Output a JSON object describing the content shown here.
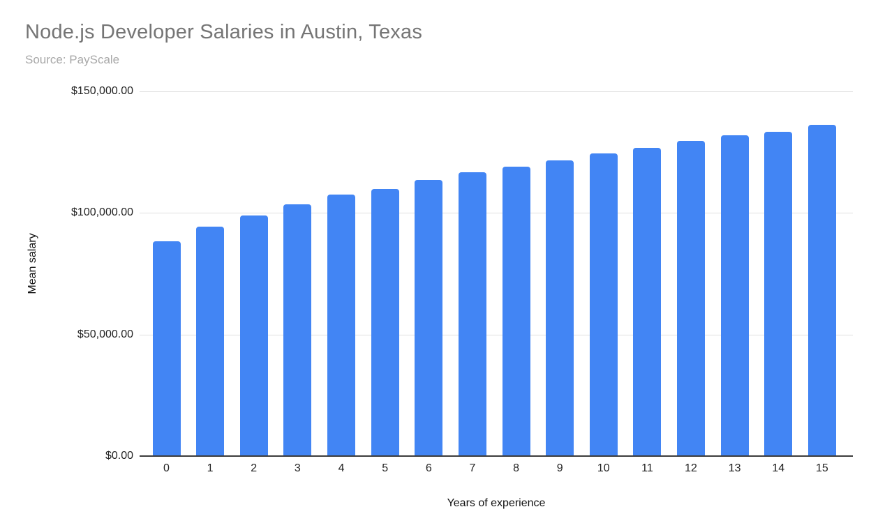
{
  "header": {
    "title": "Node.js Developer Salaries in Austin, Texas",
    "subtitle": "Source: PayScale"
  },
  "colors": {
    "bar": "#4285f4",
    "gridline": "#e0e0e0",
    "zero_axis_line": "#3c3c3c",
    "title_text": "#757575",
    "subtitle_text": "#a8a8a8",
    "tick_label_text": "#222222",
    "axis_title_text": "#111111",
    "background": "#ffffff"
  },
  "chart_data": {
    "type": "bar",
    "title": "Node.js Developer Salaries in Austin, Texas",
    "subtitle": "Source: PayScale",
    "xlabel": "Years of experience",
    "ylabel": "Mean salary",
    "categories": [
      "0",
      "1",
      "2",
      "3",
      "4",
      "5",
      "6",
      "7",
      "8",
      "9",
      "10",
      "11",
      "12",
      "13",
      "14",
      "15"
    ],
    "values": [
      88250,
      94350,
      99050,
      103600,
      107650,
      109950,
      113500,
      116650,
      119000,
      121700,
      124450,
      126750,
      129550,
      131850,
      133270,
      136230
    ],
    "series_name": "Mean salary",
    "ylim": [
      0,
      150000
    ],
    "y_ticks": [
      {
        "value": 0,
        "label": "$0.00"
      },
      {
        "value": 50000,
        "label": "$50,000.00"
      },
      {
        "value": 100000,
        "label": "$100,000.00"
      },
      {
        "value": 150000,
        "label": "$150,000.00"
      }
    ],
    "grid": true,
    "legend": "none",
    "bar_color": "#4285f4"
  }
}
